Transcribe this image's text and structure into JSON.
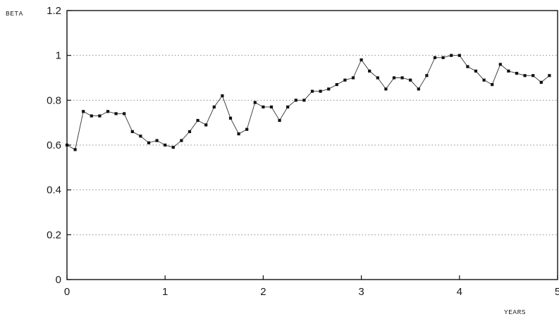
{
  "chart_data": {
    "type": "line",
    "ylabel": "BETA",
    "xlabel": "YEARS",
    "xlim": [
      0,
      5
    ],
    "ylim": [
      0,
      1.2
    ],
    "xticks": [
      0,
      1,
      2,
      3,
      4,
      5
    ],
    "yticks": [
      0,
      0.2,
      0.4,
      0.6,
      0.8,
      1,
      1.2
    ],
    "xtick_labels": [
      "0",
      "1",
      "2",
      "3",
      "4",
      "5"
    ],
    "ytick_labels": [
      "0",
      "0.2",
      "0.4",
      "0.6",
      "0.8",
      "1",
      "1.2"
    ],
    "grid": true,
    "series": [
      {
        "marker": "square",
        "color": "#111111",
        "x": [
          0.0,
          0.083,
          0.167,
          0.25,
          0.333,
          0.417,
          0.5,
          0.583,
          0.667,
          0.75,
          0.833,
          0.917,
          1.0,
          1.083,
          1.167,
          1.25,
          1.333,
          1.417,
          1.5,
          1.583,
          1.667,
          1.75,
          1.833,
          1.917,
          2.0,
          2.083,
          2.167,
          2.25,
          2.333,
          2.417,
          2.5,
          2.583,
          2.667,
          2.75,
          2.833,
          2.917,
          3.0,
          3.083,
          3.167,
          3.25,
          3.333,
          3.417,
          3.5,
          3.583,
          3.667,
          3.75,
          3.833,
          3.917,
          4.0,
          4.083,
          4.167,
          4.25,
          4.333,
          4.417,
          4.5,
          4.583,
          4.667,
          4.75,
          4.833,
          4.917
        ],
        "y": [
          0.6,
          0.58,
          0.75,
          0.73,
          0.73,
          0.75,
          0.74,
          0.74,
          0.66,
          0.64,
          0.61,
          0.62,
          0.6,
          0.59,
          0.62,
          0.66,
          0.71,
          0.69,
          0.77,
          0.82,
          0.72,
          0.65,
          0.67,
          0.79,
          0.77,
          0.77,
          0.71,
          0.77,
          0.8,
          0.8,
          0.84,
          0.84,
          0.85,
          0.87,
          0.89,
          0.9,
          0.98,
          0.93,
          0.9,
          0.85,
          0.9,
          0.9,
          0.89,
          0.85,
          0.91,
          0.99,
          0.99,
          1.0,
          1.0,
          0.95,
          0.93,
          0.89,
          0.87,
          0.96,
          0.93,
          0.92,
          0.91,
          0.91,
          0.88,
          0.91
        ]
      }
    ]
  }
}
